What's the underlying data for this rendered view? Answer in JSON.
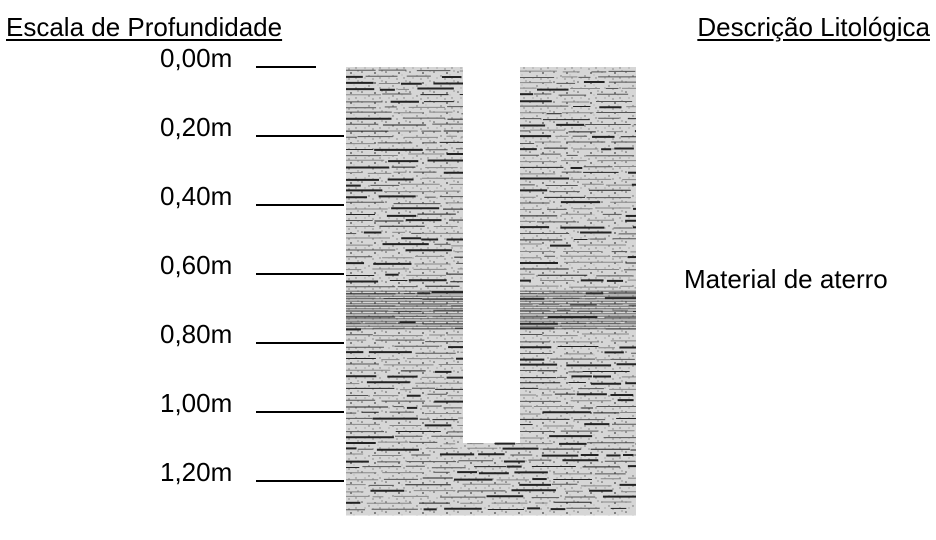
{
  "headings": {
    "scale": "Escala de Profundidade",
    "description": "Descrição Litológica"
  },
  "depth_scale": {
    "unit": "m",
    "labels": [
      "0,00m",
      "0,20m",
      "0,40m",
      "0,60m",
      "0,80m",
      "1,00m",
      "1,20m"
    ],
    "values": [
      0.0,
      0.2,
      0.4,
      0.6,
      0.8,
      1.0,
      1.2
    ]
  },
  "lithology": {
    "description": "Material de aterro",
    "top_depth": 0.0,
    "bottom_depth": 1.3
  },
  "colors": {
    "text": "#000000",
    "fill_texture": "#7a7a7a",
    "background": "#ffffff"
  }
}
